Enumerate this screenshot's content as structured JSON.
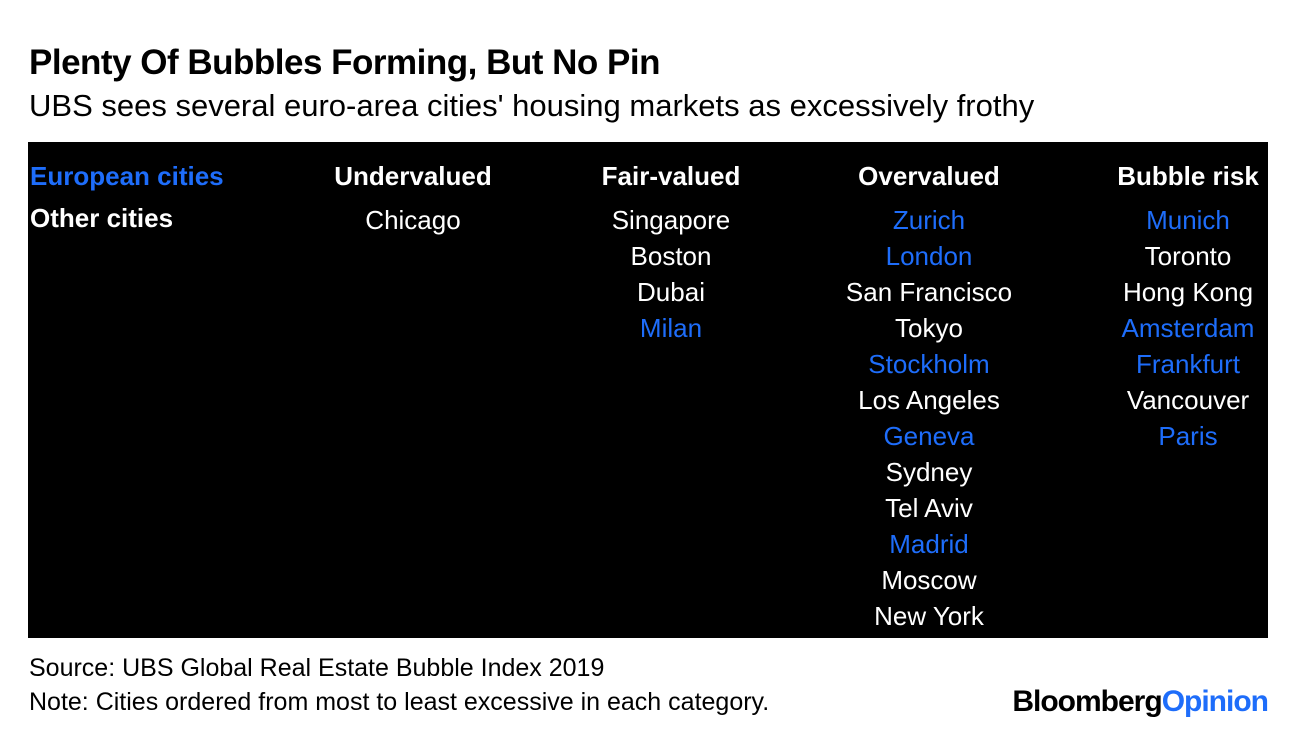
{
  "colors": {
    "european": "#1e6dfa",
    "other": "#ffffff",
    "panel": "#000000"
  },
  "title": "Plenty Of Bubbles Forming, But No Pin",
  "subtitle": "UBS sees several euro-area cities' housing markets as excessively frothy",
  "legend": {
    "european": "European cities",
    "other": "Other cities"
  },
  "chart_data": {
    "type": "table",
    "columns": [
      {
        "label": "Undervalued",
        "cities": [
          {
            "name": "Chicago",
            "group": "other"
          }
        ]
      },
      {
        "label": "Fair-valued",
        "cities": [
          {
            "name": "Singapore",
            "group": "other"
          },
          {
            "name": "Boston",
            "group": "other"
          },
          {
            "name": "Dubai",
            "group": "other"
          },
          {
            "name": "Milan",
            "group": "european"
          }
        ]
      },
      {
        "label": "Overvalued",
        "cities": [
          {
            "name": "Zurich",
            "group": "european"
          },
          {
            "name": "London",
            "group": "european"
          },
          {
            "name": "San Francisco",
            "group": "other"
          },
          {
            "name": "Tokyo",
            "group": "other"
          },
          {
            "name": "Stockholm",
            "group": "european"
          },
          {
            "name": "Los Angeles",
            "group": "other"
          },
          {
            "name": "Geneva",
            "group": "european"
          },
          {
            "name": "Sydney",
            "group": "other"
          },
          {
            "name": "Tel Aviv",
            "group": "other"
          },
          {
            "name": "Madrid",
            "group": "european"
          },
          {
            "name": "Moscow",
            "group": "other"
          },
          {
            "name": "New York",
            "group": "other"
          }
        ]
      },
      {
        "label": "Bubble risk",
        "cities": [
          {
            "name": "Munich",
            "group": "european"
          },
          {
            "name": "Toronto",
            "group": "other"
          },
          {
            "name": "Hong Kong",
            "group": "other"
          },
          {
            "name": "Amsterdam",
            "group": "european"
          },
          {
            "name": "Frankfurt",
            "group": "european"
          },
          {
            "name": "Vancouver",
            "group": "other"
          },
          {
            "name": "Paris",
            "group": "european"
          }
        ]
      }
    ]
  },
  "source": "Source: UBS Global Real Estate Bubble Index 2019",
  "note": "Note: Cities ordered from most to least excessive in each category.",
  "logo": {
    "part1": "Bloomberg",
    "part2": "Opinion"
  }
}
